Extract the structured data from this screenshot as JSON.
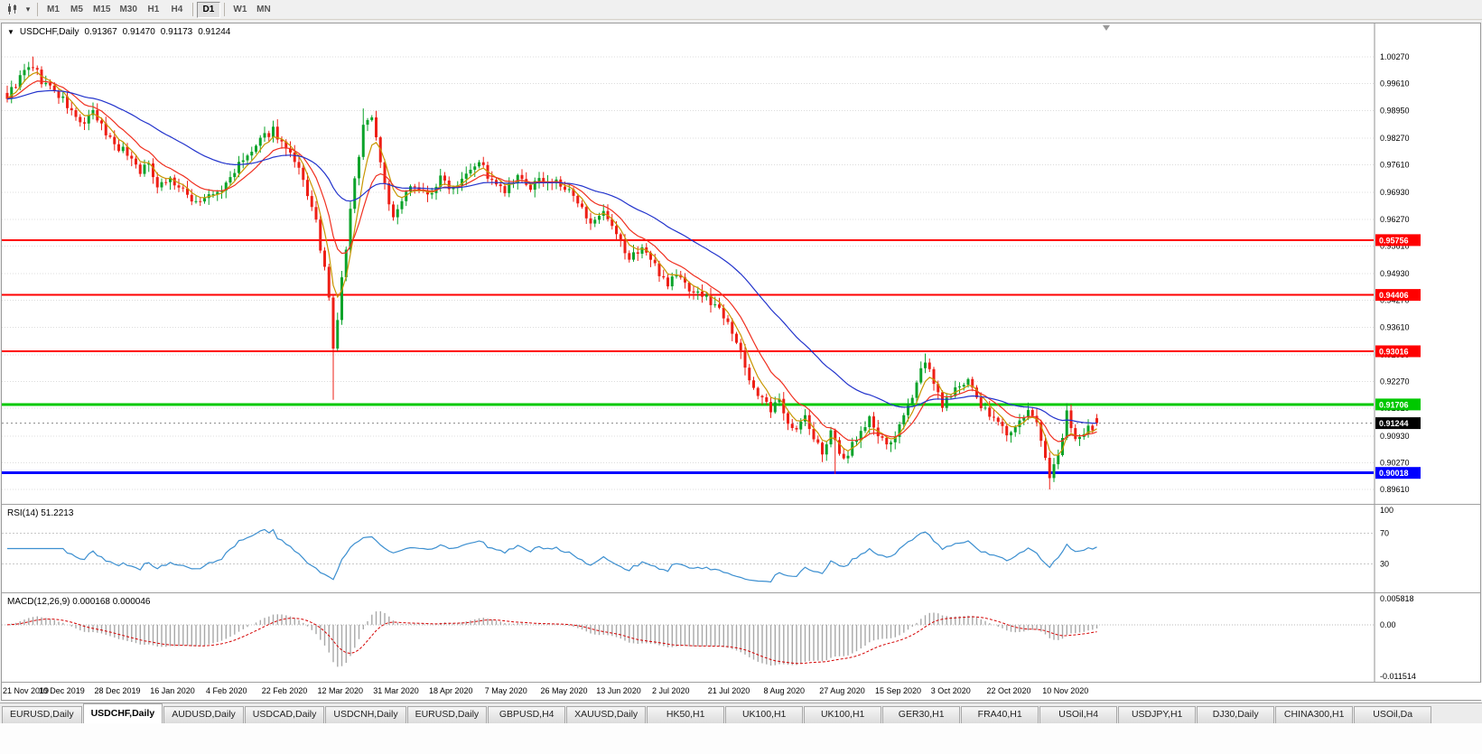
{
  "toolbar": {
    "dropdown_glyph": "▾",
    "icons": [
      {
        "name": "candlestick-chart-icon"
      },
      {
        "name": "dropdown-arrow-icon",
        "glyph": "▾"
      }
    ],
    "timeframes": [
      {
        "label": "M1",
        "active": false
      },
      {
        "label": "M5",
        "active": false
      },
      {
        "label": "M15",
        "active": false
      },
      {
        "label": "M30",
        "active": false
      },
      {
        "label": "H1",
        "active": false
      },
      {
        "label": "H4",
        "active": false
      },
      {
        "label": "D1",
        "active": true
      },
      {
        "label": "W1",
        "active": false
      },
      {
        "label": "MN",
        "active": false
      }
    ]
  },
  "chart_header": {
    "collapse_icon": "▼",
    "symbol": "USDCHF,Daily",
    "open": "0.91367",
    "high": "0.91470",
    "low": "0.91173",
    "close": "0.91244"
  },
  "rsi_panel": {
    "title": "RSI(14)",
    "value": "51.2213",
    "axis_labels": [
      "100",
      "70",
      "30"
    ]
  },
  "macd_panel": {
    "title": "MACD(12,26,9)",
    "values": "0.000168 0.000046",
    "axis_labels": [
      "0.005818",
      "0.00",
      "-0.011514"
    ]
  },
  "tabs": [
    {
      "label": "EURUSD,Daily",
      "active": false
    },
    {
      "label": "USDCHF,Daily",
      "active": true
    },
    {
      "label": "AUDUSD,Daily",
      "active": false
    },
    {
      "label": "USDCAD,Daily",
      "active": false
    },
    {
      "label": "USDCNH,Daily",
      "active": false
    },
    {
      "label": "EURUSD,Daily",
      "active": false
    },
    {
      "label": "GBPUSD,H4",
      "active": false
    },
    {
      "label": "XAUUSD,Daily",
      "active": false
    },
    {
      "label": "HK50,H1",
      "active": false
    },
    {
      "label": "UK100,H1",
      "active": false
    },
    {
      "label": "UK100,H1",
      "active": false
    },
    {
      "label": "GER30,H1",
      "active": false
    },
    {
      "label": "FRA40,H1",
      "active": false
    },
    {
      "label": "USOil,H4",
      "active": false
    },
    {
      "label": "USDJPY,H1",
      "active": false
    },
    {
      "label": "DJ30,Daily",
      "active": false
    },
    {
      "label": "CHINA300,H1",
      "active": false
    },
    {
      "label": "USOil,Da",
      "active": false
    }
  ],
  "chart_data": {
    "type": "candlestick",
    "symbol": "USDCHF",
    "timeframe": "Daily",
    "ohlc_current": {
      "open": 0.91367,
      "high": 0.9147,
      "low": 0.91173,
      "close": 0.91244
    },
    "ylim": [
      0.893,
      1.0105
    ],
    "price_axis": [
      "1.00270",
      "0.99610",
      "0.98950",
      "0.98270",
      "0.97610",
      "0.96930",
      "0.96270",
      "0.95610",
      "0.94930",
      "0.94270",
      "0.93610",
      "0.92930",
      "0.92270",
      "0.91610",
      "0.90930",
      "0.90270",
      "0.89610"
    ],
    "levels": [
      {
        "value": 0.95756,
        "label": "0.95756",
        "color": "#ff0000",
        "width": 2
      },
      {
        "value": 0.94406,
        "label": "0.94406",
        "color": "#ff0000",
        "width": 2
      },
      {
        "value": 0.93016,
        "label": "0.93016",
        "color": "#ff0000",
        "width": 2
      },
      {
        "value": 0.91706,
        "label": "0.91706",
        "color": "#00c800",
        "width": 3
      },
      {
        "value": 0.90018,
        "label": "0.90018",
        "color": "#0000ff",
        "width": 3
      }
    ],
    "current_price": {
      "value": 0.91244,
      "label": "0.91244",
      "badge_color": "#000000"
    },
    "colors": {
      "up": "#0ba32a",
      "down": "#ee1f16"
    },
    "ma_lines": [
      {
        "name": "fast-ma",
        "color": "#c89600"
      },
      {
        "name": "medium-ma",
        "color": "#f03020"
      },
      {
        "name": "slow-ma",
        "color": "#2233cc"
      }
    ],
    "candles": {
      "count": 255,
      "close_anchors": [
        [
          0,
          0.993
        ],
        [
          2,
          0.996
        ],
        [
          4,
          0.999
        ],
        [
          6,
          1.0005
        ],
        [
          8,
          0.9968
        ],
        [
          10,
          0.9952
        ],
        [
          13,
          0.992
        ],
        [
          16,
          0.9876
        ],
        [
          18,
          0.9862
        ],
        [
          20,
          0.9888
        ],
        [
          22,
          0.9855
        ],
        [
          24,
          0.9826
        ],
        [
          26,
          0.9805
        ],
        [
          28,
          0.979
        ],
        [
          31,
          0.9748
        ],
        [
          33,
          0.976
        ],
        [
          35,
          0.9715
        ],
        [
          38,
          0.9726
        ],
        [
          41,
          0.9693
        ],
        [
          44,
          0.9671
        ],
        [
          47,
          0.9682
        ],
        [
          50,
          0.9697
        ],
        [
          53,
          0.9748
        ],
        [
          57,
          0.9792
        ],
        [
          60,
          0.983
        ],
        [
          62,
          0.985
        ],
        [
          64,
          0.9815
        ],
        [
          66,
          0.9781
        ],
        [
          68,
          0.9745
        ],
        [
          70,
          0.969
        ],
        [
          72,
          0.9616
        ],
        [
          74,
          0.95
        ],
        [
          75,
          0.943
        ],
        [
          76,
          0.9302
        ],
        [
          77,
          0.9382
        ],
        [
          78,
          0.9478
        ],
        [
          79,
          0.9556
        ],
        [
          80,
          0.9648
        ],
        [
          81,
          0.972
        ],
        [
          82,
          0.979
        ],
        [
          83,
          0.9858
        ],
        [
          85,
          0.9882
        ],
        [
          86,
          0.9828
        ],
        [
          87,
          0.9772
        ],
        [
          88,
          0.9716
        ],
        [
          90,
          0.9625
        ],
        [
          92,
          0.967
        ],
        [
          95,
          0.9716
        ],
        [
          98,
          0.9684
        ],
        [
          101,
          0.9726
        ],
        [
          104,
          0.9705
        ],
        [
          107,
          0.9748
        ],
        [
          110,
          0.9772
        ],
        [
          113,
          0.9716
        ],
        [
          116,
          0.9694
        ],
        [
          119,
          0.9726
        ],
        [
          122,
          0.9705
        ],
        [
          125,
          0.9726
        ],
        [
          128,
          0.9716
        ],
        [
          131,
          0.9694
        ],
        [
          134,
          0.965
        ],
        [
          137,
          0.9616
        ],
        [
          139,
          0.9638
        ],
        [
          142,
          0.9584
        ],
        [
          145,
          0.9528
        ],
        [
          148,
          0.956
        ],
        [
          151,
          0.951
        ],
        [
          154,
          0.947
        ],
        [
          156,
          0.9492
        ],
        [
          159,
          0.9456
        ],
        [
          162,
          0.944
        ],
        [
          165,
          0.9416
        ],
        [
          168,
          0.9382
        ],
        [
          170,
          0.9322
        ],
        [
          172,
          0.9262
        ],
        [
          174,
          0.9212
        ],
        [
          176,
          0.9182
        ],
        [
          178,
          0.9152
        ],
        [
          180,
          0.9182
        ],
        [
          182,
          0.9132
        ],
        [
          184,
          0.9106
        ],
        [
          186,
          0.9142
        ],
        [
          188,
          0.9082
        ],
        [
          190,
          0.9056
        ],
        [
          192,
          0.9096
        ],
        [
          195,
          0.9032
        ],
        [
          197,
          0.9076
        ],
        [
          199,
          0.9102
        ],
        [
          201,
          0.9136
        ],
        [
          203,
          0.9092
        ],
        [
          205,
          0.9066
        ],
        [
          208,
          0.9112
        ],
        [
          210,
          0.9162
        ],
        [
          212,
          0.9232
        ],
        [
          214,
          0.9282
        ],
        [
          216,
          0.9216
        ],
        [
          218,
          0.9172
        ],
        [
          220,
          0.9186
        ],
        [
          222,
          0.9222
        ],
        [
          224,
          0.9236
        ],
        [
          226,
          0.9182
        ],
        [
          228,
          0.9152
        ],
        [
          230,
          0.9136
        ],
        [
          232,
          0.9112
        ],
        [
          234,
          0.9096
        ],
        [
          236,
          0.9132
        ],
        [
          238,
          0.9152
        ],
        [
          240,
          0.9122
        ],
        [
          241,
          0.9072
        ],
        [
          243,
          0.8996
        ],
        [
          245,
          0.9056
        ],
        [
          246,
          0.9092
        ],
        [
          247,
          0.9152
        ],
        [
          248,
          0.9106
        ],
        [
          250,
          0.9086
        ],
        [
          252,
          0.9116
        ],
        [
          253,
          0.9096
        ],
        [
          254,
          0.91244
        ]
      ],
      "key_highs": [
        [
          6,
          1.0028
        ],
        [
          62,
          0.9856
        ],
        [
          83,
          0.99
        ],
        [
          214,
          0.9296
        ],
        [
          247,
          0.9174
        ]
      ],
      "key_lows": [
        [
          76,
          0.9182
        ],
        [
          193,
          0.8999
        ],
        [
          243,
          0.8961
        ]
      ]
    },
    "rsi": {
      "period": 14,
      "current": 51.2213,
      "range": [
        0,
        100
      ],
      "levels": [
        70,
        30
      ],
      "color": "#3c8fd0"
    },
    "macd": {
      "fast": 12,
      "slow": 26,
      "signal": 9,
      "macd_value": 0.000168,
      "signal_value": 4.6e-05,
      "ylim": [
        -0.011514,
        0.005818
      ],
      "bar_color": "#a8a8a8",
      "signal_color": "#d40000"
    },
    "date_ticks": [
      {
        "index": 0,
        "label": "21 Nov 2019"
      },
      {
        "index": 13,
        "label": "10 Dec 2019"
      },
      {
        "index": 26,
        "label": "28 Dec 2019"
      },
      {
        "index": 39,
        "label": "16 Jan 2020"
      },
      {
        "index": 52,
        "label": "4 Feb 2020"
      },
      {
        "index": 65,
        "label": "22 Feb 2020"
      },
      {
        "index": 78,
        "label": "12 Mar 2020"
      },
      {
        "index": 91,
        "label": "31 Mar 2020"
      },
      {
        "index": 104,
        "label": "18 Apr 2020"
      },
      {
        "index": 117,
        "label": "7 May 2020"
      },
      {
        "index": 130,
        "label": "26 May 2020"
      },
      {
        "index": 143,
        "label": "13 Jun 2020"
      },
      {
        "index": 156,
        "label": "2 Jul 2020"
      },
      {
        "index": 169,
        "label": "21 Jul 2020"
      },
      {
        "index": 182,
        "label": "8 Aug 2020"
      },
      {
        "index": 195,
        "label": "27 Aug 2020"
      },
      {
        "index": 208,
        "label": "15 Sep 2020"
      },
      {
        "index": 221,
        "label": "3 Oct 2020"
      },
      {
        "index": 234,
        "label": "22 Oct 2020"
      },
      {
        "index": 247,
        "label": "10 Nov 2020"
      }
    ]
  }
}
